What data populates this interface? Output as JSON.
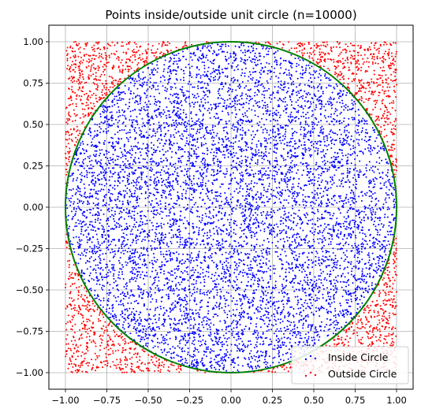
{
  "chart_data": {
    "type": "scatter",
    "title": "Points inside/outside unit circle (n=10000)",
    "xlabel": "",
    "ylabel": "",
    "xlim": [
      -1.1,
      1.1
    ],
    "ylim": [
      -1.1,
      1.1
    ],
    "x_ticks": [
      -1.0,
      -0.75,
      -0.5,
      -0.25,
      0.0,
      0.25,
      0.5,
      0.75,
      1.0
    ],
    "x_tick_labels": [
      "−1.00",
      "−0.75",
      "−0.50",
      "−0.25",
      "0.00",
      "0.25",
      "0.50",
      "0.75",
      "1.00"
    ],
    "y_ticks": [
      1.0,
      0.75,
      0.5,
      0.25,
      0.0,
      -0.25,
      -0.5,
      -0.75,
      -1.0
    ],
    "y_tick_labels": [
      "1.00",
      "0.75",
      "0.50",
      "0.25",
      "0.00",
      "−0.25",
      "−0.50",
      "−0.75",
      "−1.00"
    ],
    "grid": true,
    "legend_position": "lower-right",
    "n_points": 10000,
    "sampling_domain": {
      "x": [
        -1,
        1
      ],
      "y": [
        -1,
        1
      ]
    },
    "series": [
      {
        "name": "Inside Circle",
        "color": "#0000ff",
        "rule": "x^2 + y^2 <= 1"
      },
      {
        "name": "Outside Circle",
        "color": "#ff0000",
        "rule": "x^2 + y^2 > 1"
      }
    ],
    "circle": {
      "center": [
        0,
        0
      ],
      "radius": 1,
      "color": "#008000"
    }
  }
}
